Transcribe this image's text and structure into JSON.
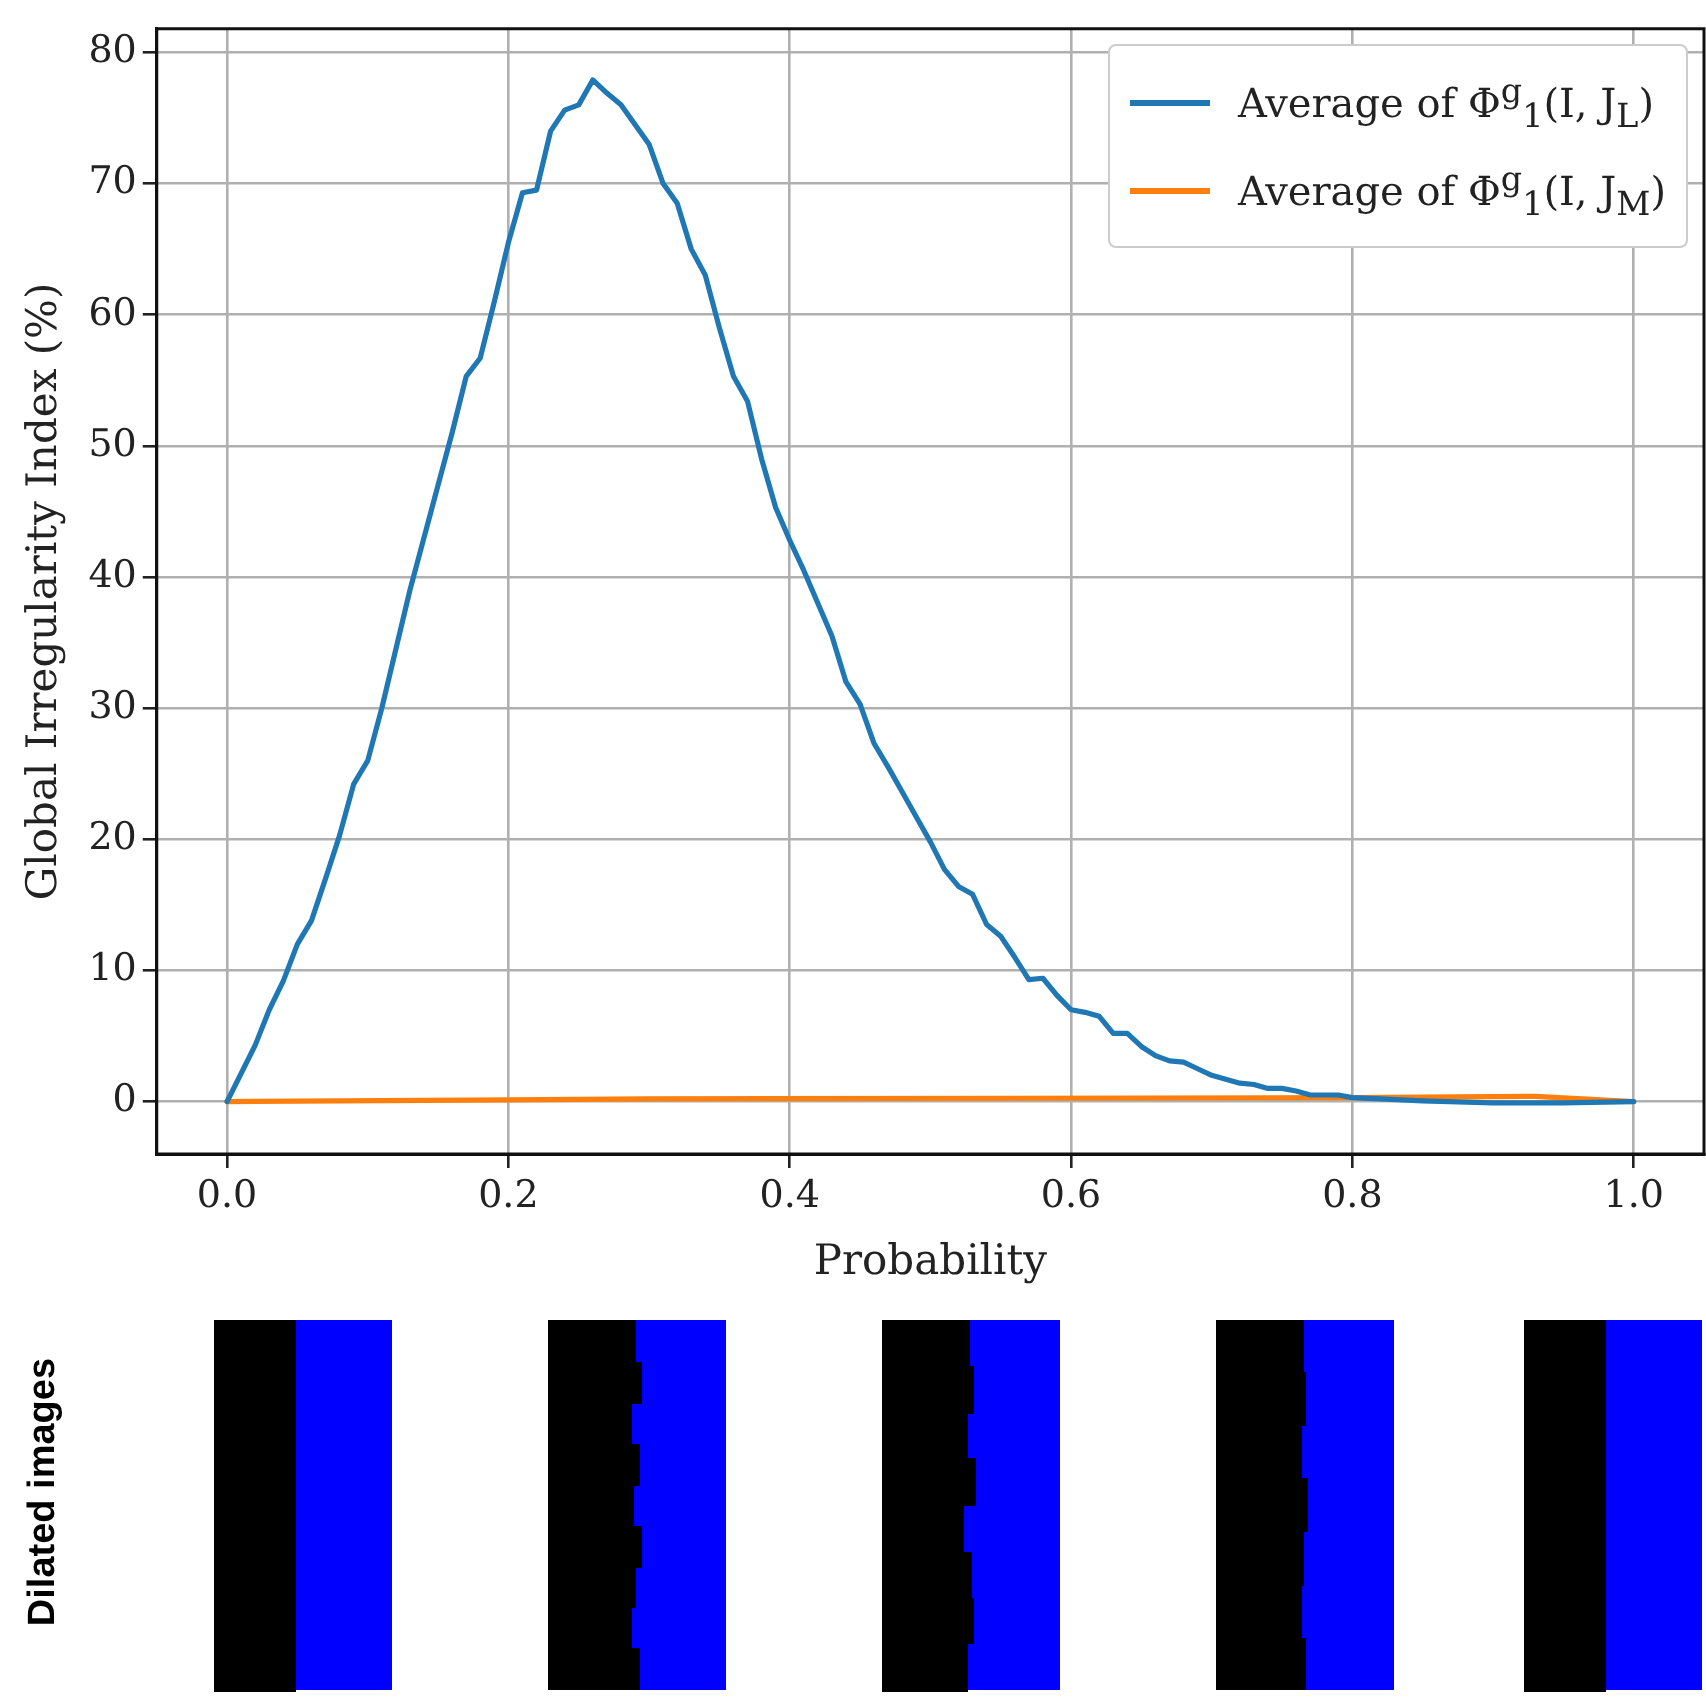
{
  "chart_data": {
    "type": "line",
    "xlabel": "Probability",
    "ylabel": "Global Irregularity Index (%)",
    "xlim": [
      -0.05,
      1.05
    ],
    "ylim": [
      -4,
      81.8
    ],
    "xticks": [
      {
        "value": 0,
        "label": "0.0"
      },
      0.2,
      0.4,
      0.6,
      0.8,
      {
        "value": 1,
        "label": "1.0"
      }
    ],
    "yticks": [
      0,
      10,
      20,
      30,
      40,
      50,
      60,
      70,
      80
    ],
    "grid": true,
    "legend": "top right",
    "marker": "none",
    "line_style": "solid",
    "annotations": [
      "Dilated images"
    ],
    "series": [
      {
        "name": "Average of Φ$^{g}$$_{1}$(I, J$_{L}$)",
        "color": "#1f77b4",
        "x": [
          0,
          0.02,
          0.03,
          0.04,
          0.05,
          0.06,
          0.07,
          0.08,
          0.09,
          0.1,
          0.11,
          0.12,
          0.13,
          0.14,
          0.15,
          0.16,
          0.17,
          0.18,
          0.19,
          0.2,
          0.21,
          0.22,
          0.23,
          0.24,
          0.25,
          0.26,
          0.27,
          0.28,
          0.29,
          0.3,
          0.31,
          0.32,
          0.33,
          0.34,
          0.35,
          0.36,
          0.37,
          0.38,
          0.39,
          0.4,
          0.41,
          0.42,
          0.43,
          0.44,
          0.45,
          0.46,
          0.47,
          0.48,
          0.49,
          0.5,
          0.51,
          0.52,
          0.53,
          0.54,
          0.55,
          0.56,
          0.57,
          0.58,
          0.59,
          0.6,
          0.61,
          0.62,
          0.63,
          0.64,
          0.65,
          0.66,
          0.67,
          0.68,
          0.69,
          0.7,
          0.71,
          0.72,
          0.73,
          0.74,
          0.75,
          0.76,
          0.77,
          0.78,
          0.79,
          0.8,
          0.82,
          0.85,
          0.9,
          0.95,
          1.0
        ],
        "values": [
          0,
          4.3,
          7,
          9.2,
          12,
          13.8,
          17,
          20.3,
          24.2,
          26,
          30,
          34.5,
          39,
          43,
          47,
          51,
          55.3,
          56.7,
          61,
          65.5,
          69.3,
          69.5,
          74,
          75.6,
          76,
          77.9,
          76.9,
          76,
          74.5,
          73,
          70,
          68.5,
          65,
          63,
          59,
          55.3,
          53.4,
          49,
          45.3,
          42.8,
          40.5,
          38,
          35.5,
          32,
          30.3,
          27.3,
          25.5,
          23.6,
          21.7,
          19.8,
          17.7,
          16.4,
          15.8,
          13.5,
          12.6,
          11,
          9.3,
          9.4,
          8.1,
          7,
          6.8,
          6.5,
          5.2,
          5.2,
          4.2,
          3.5,
          3.1,
          3,
          2.5,
          2,
          1.7,
          1.4,
          1.3,
          1,
          1,
          0.8,
          0.5,
          0.5,
          0.5,
          0.3,
          0.2,
          0.05,
          -0.1,
          -0.1,
          0
        ]
      },
      {
        "name": "Average of Φ$^{g}$$_{1}$(I, J$_{M}$)",
        "color": "#ff7f0e",
        "x": [
          0,
          0.3,
          0.8,
          0.93,
          1.0
        ],
        "values": [
          0,
          0.2,
          0.3,
          0.4,
          0
        ]
      }
    ]
  }
}
